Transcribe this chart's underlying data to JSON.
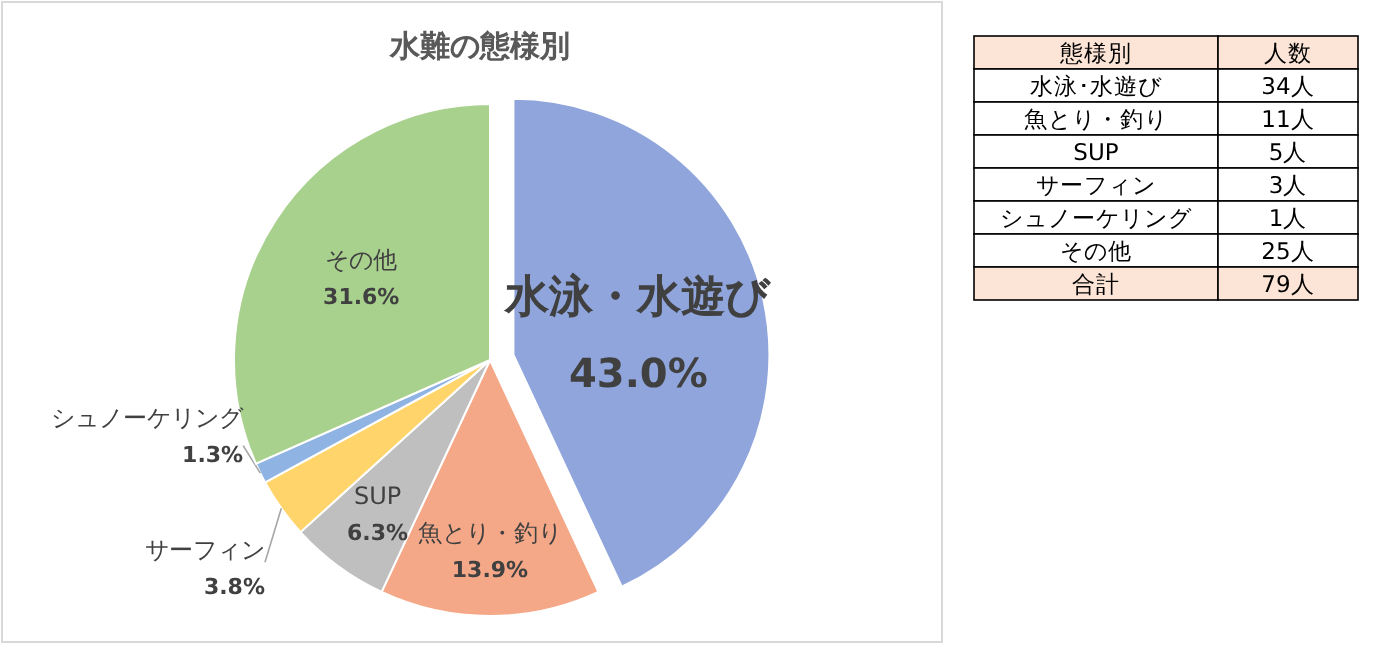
{
  "chart_data": {
    "type": "pie",
    "title": "水難の態様別",
    "categories": [
      "水泳・水遊び",
      "魚とり・釣り",
      "SUP",
      "サーフィン",
      "シュノーケリング",
      "その他"
    ],
    "values": [
      43.0,
      13.9,
      6.3,
      3.8,
      1.3,
      31.6
    ],
    "colors": [
      "#8fa5dc",
      "#f4a888",
      "#bfbfbf",
      "#ffd56b",
      "#8fb4e3",
      "#a9d18e"
    ],
    "value_labels": [
      "43.0%",
      "13.9%",
      "6.3%",
      "3.8%",
      "1.3%",
      "31.6%"
    ],
    "annotations": [
      "態様別",
      "人数",
      "水泳･水遊び",
      "34人",
      "魚とり・釣り",
      "11人",
      "SUP",
      "5人",
      "サーフィン",
      "3人",
      "シュノーケリング",
      "1人",
      "その他",
      "25人",
      "合計",
      "79人"
    ]
  }
}
